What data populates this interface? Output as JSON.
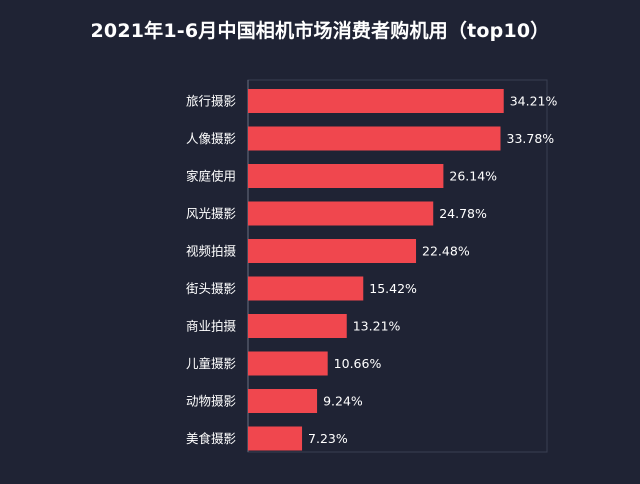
{
  "chart_data": {
    "type": "bar",
    "orientation": "horizontal",
    "title": "2021年1-6月中国相机市场消费者购机用（top10）",
    "categories": [
      "旅行摄影",
      "人像摄影",
      "家庭使用",
      "风光摄影",
      "视频拍摄",
      "街头摄影",
      "商业拍摄",
      "儿童摄影",
      "动物摄影",
      "美食摄影"
    ],
    "values": [
      34.21,
      33.78,
      26.14,
      24.78,
      22.48,
      15.42,
      13.21,
      10.66,
      9.24,
      7.23
    ],
    "value_labels": [
      "34.21%",
      "33.78%",
      "26.14%",
      "24.78%",
      "22.48%",
      "15.42%",
      "13.21%",
      "10.66%",
      "9.24%",
      "7.23%"
    ],
    "xlim": [
      0,
      40
    ],
    "grid": false,
    "legend": "none",
    "bar_color": "#f0474e",
    "background_color": "#1f2334",
    "text_color": "#ffffff"
  }
}
